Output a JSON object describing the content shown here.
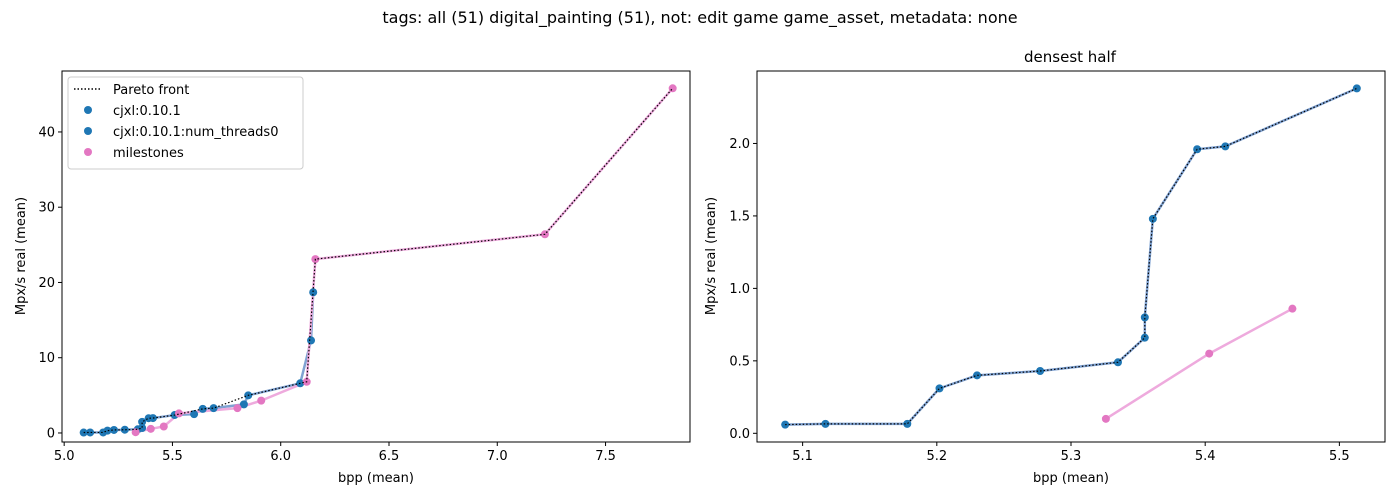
{
  "suptitle": "tags: all (51) digital_painting (51), not: edit game game_asset, metadata: none",
  "colors": {
    "cjxl": "#1f77b4",
    "milestones": "#e377c2",
    "pareto": "#000000",
    "cjxl_line": "#7fa2d2",
    "milestone_line": "#eeaadd"
  },
  "chart_data": [
    {
      "type": "scatter",
      "title": "",
      "xlabel": "bpp (mean)",
      "ylabel": "Mpx/s real (mean)",
      "xlim": [
        4.99,
        7.89
      ],
      "ylim": [
        -1.2,
        48.1
      ],
      "xticks": [
        5.0,
        5.5,
        6.0,
        6.5,
        7.0,
        7.5
      ],
      "xtick_labels": [
        "5.0",
        "5.5",
        "6.0",
        "6.5",
        "7.0",
        "7.5"
      ],
      "yticks": [
        0,
        10,
        20,
        30,
        40
      ],
      "ytick_labels": [
        "0",
        "10",
        "20",
        "30",
        "40"
      ],
      "grid": false,
      "legend": {
        "position": "upper-left",
        "entries": [
          {
            "label": "Pareto front",
            "kind": "dotted-line",
            "color_key": "pareto"
          },
          {
            "label": "cjxl:0.10.1",
            "kind": "marker",
            "color_key": "cjxl"
          },
          {
            "label": "cjxl:0.10.1:num_threads0",
            "kind": "marker",
            "color_key": "cjxl"
          },
          {
            "label": "milestones",
            "kind": "marker",
            "color_key": "milestones"
          }
        ]
      },
      "series": [
        {
          "color_key": "cjxl",
          "line_color_key": "cjxl_line",
          "points": [
            [
              5.09,
              0.06
            ],
            [
              5.12,
              0.07
            ],
            [
              5.18,
              0.07
            ],
            [
              5.2,
              0.31
            ],
            [
              5.23,
              0.4
            ],
            [
              5.28,
              0.43
            ],
            [
              5.34,
              0.49
            ],
            [
              5.36,
              0.66
            ],
            [
              5.36,
              1.48
            ],
            [
              5.39,
              1.96
            ],
            [
              5.41,
              1.98
            ],
            [
              5.51,
              2.38
            ],
            [
              5.6,
              2.5
            ],
            [
              5.64,
              3.2
            ],
            [
              5.69,
              3.3
            ],
            [
              5.83,
              3.8
            ],
            [
              5.85,
              5.0
            ],
            [
              6.09,
              6.6
            ],
            [
              6.14,
              12.3
            ],
            [
              6.15,
              18.7
            ]
          ]
        },
        {
          "color_key": "milestones",
          "line_color_key": "milestone_line",
          "points": [
            [
              5.33,
              0.1
            ],
            [
              5.4,
              0.55
            ],
            [
              5.46,
              0.86
            ],
            [
              5.53,
              2.6
            ],
            [
              5.8,
              3.3
            ],
            [
              5.91,
              4.3
            ],
            [
              6.12,
              6.8
            ],
            [
              6.16,
              23.1
            ],
            [
              7.22,
              26.4
            ],
            [
              7.81,
              45.8
            ]
          ]
        }
      ],
      "pareto": [
        [
          5.09,
          0.06
        ],
        [
          5.12,
          0.07
        ],
        [
          5.18,
          0.07
        ],
        [
          5.2,
          0.31
        ],
        [
          5.23,
          0.4
        ],
        [
          5.28,
          0.43
        ],
        [
          5.34,
          0.49
        ],
        [
          5.36,
          0.66
        ],
        [
          5.36,
          1.48
        ],
        [
          5.39,
          1.96
        ],
        [
          5.41,
          1.98
        ],
        [
          5.51,
          2.38
        ],
        [
          5.64,
          3.2
        ],
        [
          5.69,
          3.3
        ],
        [
          5.85,
          5.0
        ],
        [
          6.09,
          6.6
        ],
        [
          6.12,
          6.8
        ],
        [
          6.16,
          23.1
        ],
        [
          7.22,
          26.4
        ],
        [
          7.81,
          45.8
        ]
      ]
    },
    {
      "type": "scatter",
      "title": "densest half",
      "xlabel": "bpp (mean)",
      "ylabel": "Mpx/s real (mean)",
      "xlim": [
        5.066,
        5.534
      ],
      "ylim": [
        -0.06,
        2.5
      ],
      "xticks": [
        5.1,
        5.2,
        5.3,
        5.4,
        5.5
      ],
      "xtick_labels": [
        "5.1",
        "5.2",
        "5.3",
        "5.4",
        "5.5"
      ],
      "yticks": [
        0.0,
        0.5,
        1.0,
        1.5,
        2.0
      ],
      "ytick_labels": [
        "0.0",
        "0.5",
        "1.0",
        "1.5",
        "2.0"
      ],
      "grid": false,
      "series": [
        {
          "color_key": "cjxl",
          "line_color_key": "cjxl_line",
          "points": [
            [
              5.087,
              0.06
            ],
            [
              5.117,
              0.065
            ],
            [
              5.178,
              0.065
            ],
            [
              5.202,
              0.31
            ],
            [
              5.23,
              0.4
            ],
            [
              5.277,
              0.43
            ],
            [
              5.335,
              0.49
            ],
            [
              5.355,
              0.66
            ],
            [
              5.355,
              0.8
            ],
            [
              5.361,
              1.48
            ],
            [
              5.394,
              1.96
            ],
            [
              5.415,
              1.98
            ],
            [
              5.513,
              2.38
            ]
          ]
        },
        {
          "color_key": "milestones",
          "line_color_key": "milestone_line",
          "points": [
            [
              5.326,
              0.1
            ],
            [
              5.403,
              0.55
            ],
            [
              5.465,
              0.86
            ]
          ]
        }
      ],
      "pareto": [
        [
          5.087,
          0.06
        ],
        [
          5.117,
          0.065
        ],
        [
          5.178,
          0.065
        ],
        [
          5.202,
          0.31
        ],
        [
          5.23,
          0.4
        ],
        [
          5.277,
          0.43
        ],
        [
          5.335,
          0.49
        ],
        [
          5.355,
          0.66
        ],
        [
          5.355,
          0.8
        ],
        [
          5.361,
          1.48
        ],
        [
          5.394,
          1.96
        ],
        [
          5.415,
          1.98
        ],
        [
          5.513,
          2.38
        ]
      ]
    }
  ]
}
